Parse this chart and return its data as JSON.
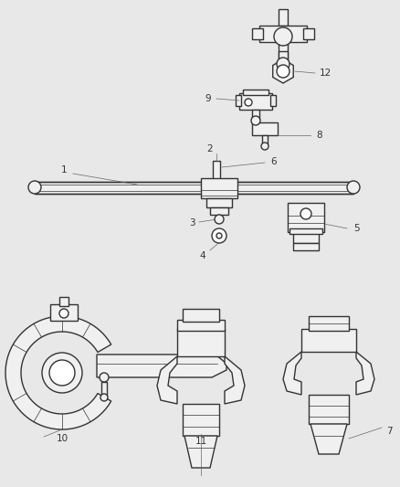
{
  "background_color": "#e8e8e8",
  "line_color": "#333333",
  "label_color": "#333333",
  "fill_color": "#ffffff",
  "fill_gray": "#f0f0f0",
  "lw_main": 1.0,
  "lw_thin": 0.5,
  "figsize": [
    4.38,
    5.33
  ],
  "dpi": 100
}
